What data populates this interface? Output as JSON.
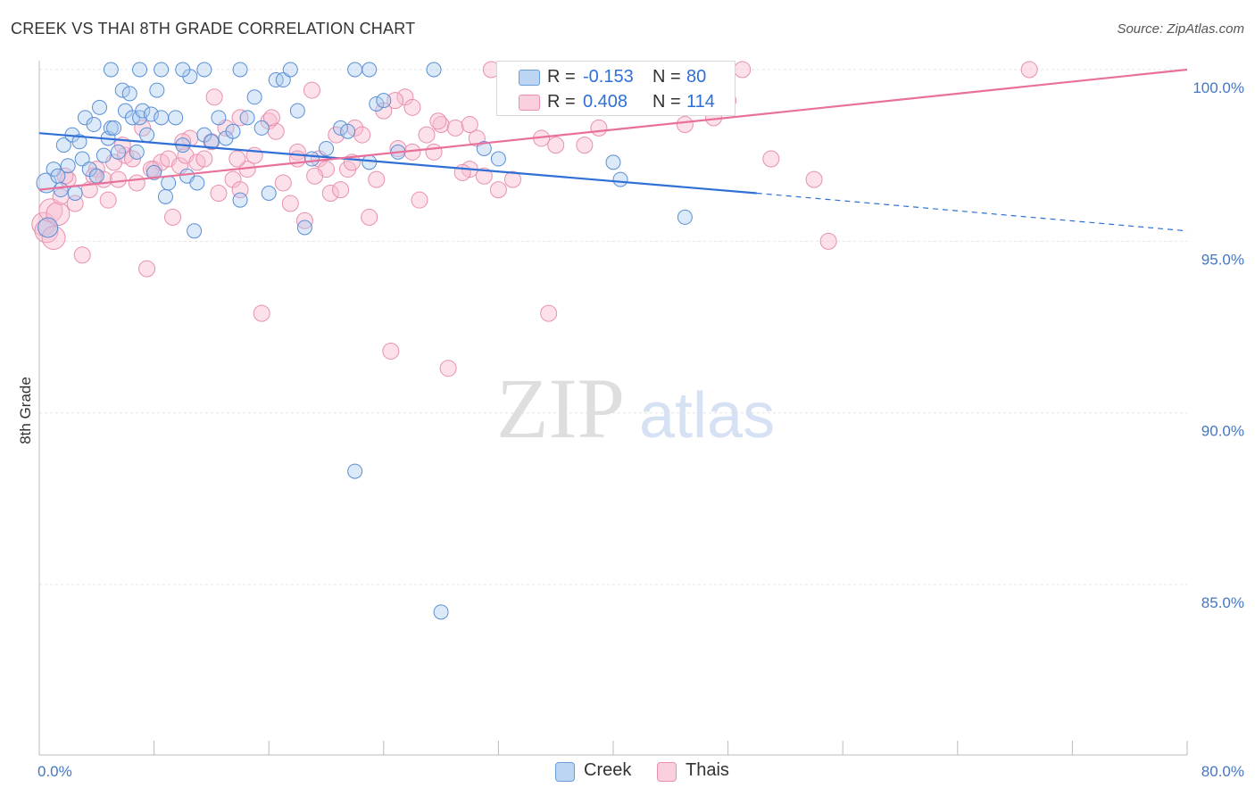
{
  "header": {
    "title": "CREEK VS THAI 8TH GRADE CORRELATION CHART",
    "source": "Source: ZipAtlas.com"
  },
  "watermark": {
    "zip": "ZIP",
    "atlas": "atlas"
  },
  "legend": {
    "rows": [
      {
        "r_label": "R =",
        "r_value": "-0.153",
        "n_label": "N =",
        "n_value": "80",
        "color": "#a8c8f0",
        "border": "#6a9ed8"
      },
      {
        "r_label": "R =",
        "r_value": "0.408",
        "n_label": "N =",
        "n_value": "114",
        "color": "#f8bcd0",
        "border": "#e890ad"
      }
    ]
  },
  "bottom_legend": {
    "creek": "Creek",
    "thais": "Thais"
  },
  "chart_data": {
    "type": "scatter",
    "title": "CREEK VS THAI 8TH GRADE CORRELATION CHART",
    "xlabel": "",
    "ylabel": "8th Grade",
    "xlim": [
      0,
      80
    ],
    "ylim": [
      80.5,
      100.8
    ],
    "x_tick_labels": [
      "0.0%",
      "80.0%"
    ],
    "y_ticks": [
      85,
      90,
      95,
      100
    ],
    "y_tick_labels": [
      "85.0%",
      "90.0%",
      "95.0%",
      "100.0%"
    ],
    "grid": true,
    "legend_position": "top-center",
    "colors": {
      "creek": "#6a9ed8",
      "creek_line": "#2f6fd6",
      "thais": "#e890ad",
      "thais_line": "#e8709a"
    },
    "series": [
      {
        "name": "Creek",
        "trend": {
          "x0": 0,
          "y0": 98.15,
          "x1": 50,
          "y1": 96.4,
          "dash_to_x": 80,
          "dash_to_y": 95.3
        },
        "points": [
          [
            0.5,
            96.7
          ],
          [
            0.6,
            95.4
          ],
          [
            1,
            97.1
          ],
          [
            1.3,
            96.9
          ],
          [
            1.5,
            96.5
          ],
          [
            1.7,
            97.8
          ],
          [
            2,
            97.2
          ],
          [
            2.3,
            98.1
          ],
          [
            2.5,
            96.4
          ],
          [
            2.8,
            97.9
          ],
          [
            3,
            97.4
          ],
          [
            3.2,
            98.6
          ],
          [
            3.5,
            97.1
          ],
          [
            3.8,
            98.4
          ],
          [
            4,
            96.9
          ],
          [
            4.2,
            98.9
          ],
          [
            4.5,
            97.5
          ],
          [
            4.8,
            98
          ],
          [
            5,
            98.3
          ],
          [
            5.2,
            98.3
          ],
          [
            5.5,
            97.6
          ],
          [
            5.8,
            99.4
          ],
          [
            6,
            98.8
          ],
          [
            6.3,
            99.3
          ],
          [
            6.5,
            98.6
          ],
          [
            6.8,
            97.6
          ],
          [
            7,
            98.6
          ],
          [
            7.2,
            98.8
          ],
          [
            7.5,
            98.1
          ],
          [
            7.8,
            98.7
          ],
          [
            8,
            97
          ],
          [
            8.2,
            99.4
          ],
          [
            8.5,
            98.6
          ],
          [
            8.8,
            96.3
          ],
          [
            9,
            96.7
          ],
          [
            9.5,
            98.6
          ],
          [
            10,
            97.8
          ],
          [
            10.3,
            96.9
          ],
          [
            10.5,
            99.8
          ],
          [
            10.8,
            95.3
          ],
          [
            11,
            96.7
          ],
          [
            11.5,
            98.1
          ],
          [
            12,
            97.9
          ],
          [
            12.5,
            98.6
          ],
          [
            13,
            98
          ],
          [
            13.5,
            98.2
          ],
          [
            14,
            96.2
          ],
          [
            14.5,
            98.6
          ],
          [
            15,
            99.2
          ],
          [
            15.5,
            98.3
          ],
          [
            16,
            96.4
          ],
          [
            16.5,
            99.7
          ],
          [
            17,
            99.7
          ],
          [
            18,
            98.8
          ],
          [
            18.5,
            95.4
          ],
          [
            19,
            97.4
          ],
          [
            20,
            97.7
          ],
          [
            21,
            98.3
          ],
          [
            21.5,
            98.2
          ],
          [
            22,
            88.3
          ],
          [
            23,
            97.3
          ],
          [
            23.5,
            99
          ],
          [
            24,
            99.1
          ],
          [
            25,
            97.6
          ],
          [
            28,
            84.2
          ],
          [
            31,
            97.7
          ],
          [
            32,
            97.4
          ],
          [
            40,
            97.3
          ],
          [
            40.5,
            96.8
          ],
          [
            45,
            95.7
          ],
          [
            5,
            100
          ],
          [
            8.5,
            100
          ],
          [
            10,
            100
          ],
          [
            11.5,
            100
          ],
          [
            14,
            100
          ],
          [
            17.5,
            100
          ],
          [
            22,
            100
          ],
          [
            23,
            100
          ],
          [
            27.5,
            100
          ],
          [
            7,
            100
          ]
        ]
      },
      {
        "name": "Thais",
        "trend": {
          "x0": 0,
          "y0": 96.5,
          "x1": 80,
          "y1": 100
        },
        "points": [
          [
            0.3,
            95.5
          ],
          [
            0.5,
            95.3
          ],
          [
            0.8,
            95.9
          ],
          [
            1,
            95.1
          ],
          [
            1.3,
            95.8
          ],
          [
            1.5,
            96.3
          ],
          [
            2,
            96.8
          ],
          [
            2.5,
            96.1
          ],
          [
            3,
            94.6
          ],
          [
            3.5,
            96.5
          ],
          [
            4,
            97.1
          ],
          [
            4.5,
            96.8
          ],
          [
            4.8,
            96.2
          ],
          [
            5.2,
            97.3
          ],
          [
            5.5,
            96.8
          ],
          [
            6,
            97.5
          ],
          [
            6.5,
            97.4
          ],
          [
            6.8,
            96.7
          ],
          [
            7.2,
            98.3
          ],
          [
            7.5,
            94.2
          ],
          [
            8,
            97.1
          ],
          [
            8.5,
            97.3
          ],
          [
            9,
            97.4
          ],
          [
            9.3,
            95.7
          ],
          [
            9.8,
            97.2
          ],
          [
            10.2,
            97.5
          ],
          [
            10.5,
            98
          ],
          [
            11,
            97.3
          ],
          [
            11.5,
            97.4
          ],
          [
            12,
            97.9
          ],
          [
            12.5,
            96.4
          ],
          [
            13,
            98.3
          ],
          [
            13.5,
            96.8
          ],
          [
            14,
            96.5
          ],
          [
            14.5,
            97.1
          ],
          [
            15,
            97.5
          ],
          [
            15.5,
            92.9
          ],
          [
            16,
            98.5
          ],
          [
            16.5,
            98.2
          ],
          [
            17,
            96.7
          ],
          [
            17.5,
            96.1
          ],
          [
            18,
            97.6
          ],
          [
            18.5,
            95.6
          ],
          [
            19,
            99.4
          ],
          [
            19.5,
            97.4
          ],
          [
            20,
            97.1
          ],
          [
            20.3,
            96.4
          ],
          [
            20.7,
            98.1
          ],
          [
            21,
            96.5
          ],
          [
            21.5,
            97.1
          ],
          [
            22,
            98.3
          ],
          [
            22.5,
            98.1
          ],
          [
            23,
            95.7
          ],
          [
            23.5,
            96.8
          ],
          [
            24,
            98.8
          ],
          [
            24.5,
            91.8
          ],
          [
            25,
            97.7
          ],
          [
            25.5,
            99.2
          ],
          [
            26,
            97.6
          ],
          [
            26.5,
            96.2
          ],
          [
            27,
            98.1
          ],
          [
            27.5,
            97.6
          ],
          [
            28,
            98.4
          ],
          [
            28.5,
            91.3
          ],
          [
            29,
            98.3
          ],
          [
            30,
            97.1
          ],
          [
            30.5,
            98
          ],
          [
            31,
            96.9
          ],
          [
            32,
            96.5
          ],
          [
            33,
            96.8
          ],
          [
            34,
            98.9
          ],
          [
            35,
            98
          ],
          [
            35.5,
            92.9
          ],
          [
            36,
            97.8
          ],
          [
            37,
            99.5
          ],
          [
            38,
            97.8
          ],
          [
            39,
            98.3
          ],
          [
            42,
            99
          ],
          [
            43,
            99.2
          ],
          [
            45,
            98.4
          ],
          [
            47,
            98.6
          ],
          [
            48,
            99.1
          ],
          [
            49,
            100
          ],
          [
            51,
            97.4
          ],
          [
            54,
            96.8
          ],
          [
            55,
            95
          ],
          [
            69,
            100
          ],
          [
            10,
            97.9
          ],
          [
            14,
            98.6
          ],
          [
            18,
            97.4
          ],
          [
            26,
            98.9
          ],
          [
            30,
            98.4
          ],
          [
            33,
            99
          ],
          [
            36,
            99.9
          ],
          [
            40,
            100
          ],
          [
            44,
            99.3
          ],
          [
            46,
            100
          ],
          [
            1.8,
            96.9
          ],
          [
            3.8,
            96.9
          ],
          [
            5.8,
            97.8
          ],
          [
            7.8,
            97.1
          ],
          [
            12.2,
            99.2
          ],
          [
            13.8,
            97.4
          ],
          [
            16.2,
            98.6
          ],
          [
            19.2,
            96.9
          ],
          [
            21.8,
            97.3
          ],
          [
            24.8,
            99.1
          ],
          [
            27.8,
            98.5
          ],
          [
            29.5,
            97
          ],
          [
            31.5,
            100
          ],
          [
            34.5,
            99.4
          ],
          [
            37.5,
            100
          ],
          [
            39.5,
            99.5
          ],
          [
            41.5,
            99.8
          ]
        ]
      }
    ]
  }
}
